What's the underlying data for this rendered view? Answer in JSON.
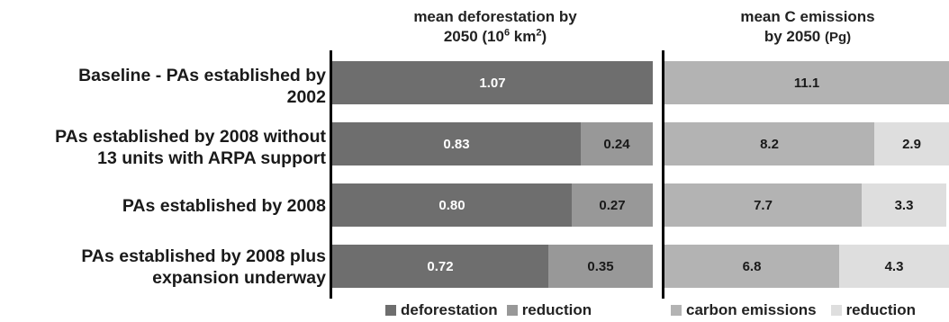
{
  "chart_data": [
    {
      "type": "bar",
      "orientation": "horizontal",
      "stacked": true,
      "title": "mean deforestation by 2050 (10⁶ km²)",
      "title_parts": {
        "line1": "mean deforestation by",
        "line2_pre": "2050 (10",
        "sup1": "6",
        "line2_mid": " km",
        "sup2": "2",
        "line2_post": ")"
      },
      "categories": [
        "Baseline - PAs established by 2002",
        "PAs established by 2008 without 13 units with ARPA support",
        "PAs established by 2008",
        "PAs established by 2008 plus expansion underway"
      ],
      "series": [
        {
          "name": "deforestation",
          "values": [
            1.07,
            0.83,
            0.8,
            0.72
          ],
          "labels": [
            "1.07",
            "0.83",
            "0.80",
            "0.72"
          ],
          "color": "#6e6e6e",
          "label_color": "#ffffff"
        },
        {
          "name": "reduction",
          "values": [
            0,
            0.24,
            0.27,
            0.35
          ],
          "labels": [
            "",
            "0.24",
            "0.27",
            "0.35"
          ],
          "color": "#989898",
          "label_color": "#1a1a1a"
        }
      ],
      "xlim": [
        0,
        1.07
      ],
      "legend": "bottom"
    },
    {
      "type": "bar",
      "orientation": "horizontal",
      "stacked": true,
      "title": "mean C emissions by 2050 (Pg)",
      "title_parts": {
        "line1": "mean C emissions",
        "line2": "by 2050",
        "unit": "(Pg)"
      },
      "categories": [
        "Baseline - PAs established by 2002",
        "PAs established by 2008 without 13 units with ARPA support",
        "PAs established by 2008",
        "PAs established by 2008 plus expansion underway"
      ],
      "series": [
        {
          "name": "carbon emissions",
          "values": [
            11.1,
            8.2,
            7.7,
            6.8
          ],
          "labels": [
            "11.1",
            "8.2",
            "7.7",
            "6.8"
          ],
          "color": "#b3b3b3",
          "label_color": "#1a1a1a"
        },
        {
          "name": "reduction",
          "values": [
            0,
            2.9,
            3.3,
            4.3
          ],
          "labels": [
            "",
            "2.9",
            "3.3",
            "4.3"
          ],
          "color": "#dedede",
          "label_color": "#1a1a1a"
        }
      ],
      "xlim": [
        0,
        11.1
      ],
      "legend": "bottom"
    }
  ],
  "row_labels": [
    {
      "line1": "Baseline - PAs established by",
      "line2": "2002"
    },
    {
      "line1": "PAs established by 2008 without",
      "line2": "13 units with ARPA support"
    },
    {
      "line1": "PAs established by 2008",
      "line2": ""
    },
    {
      "line1": "PAs established by 2008 plus",
      "line2": "expansion underway"
    }
  ]
}
